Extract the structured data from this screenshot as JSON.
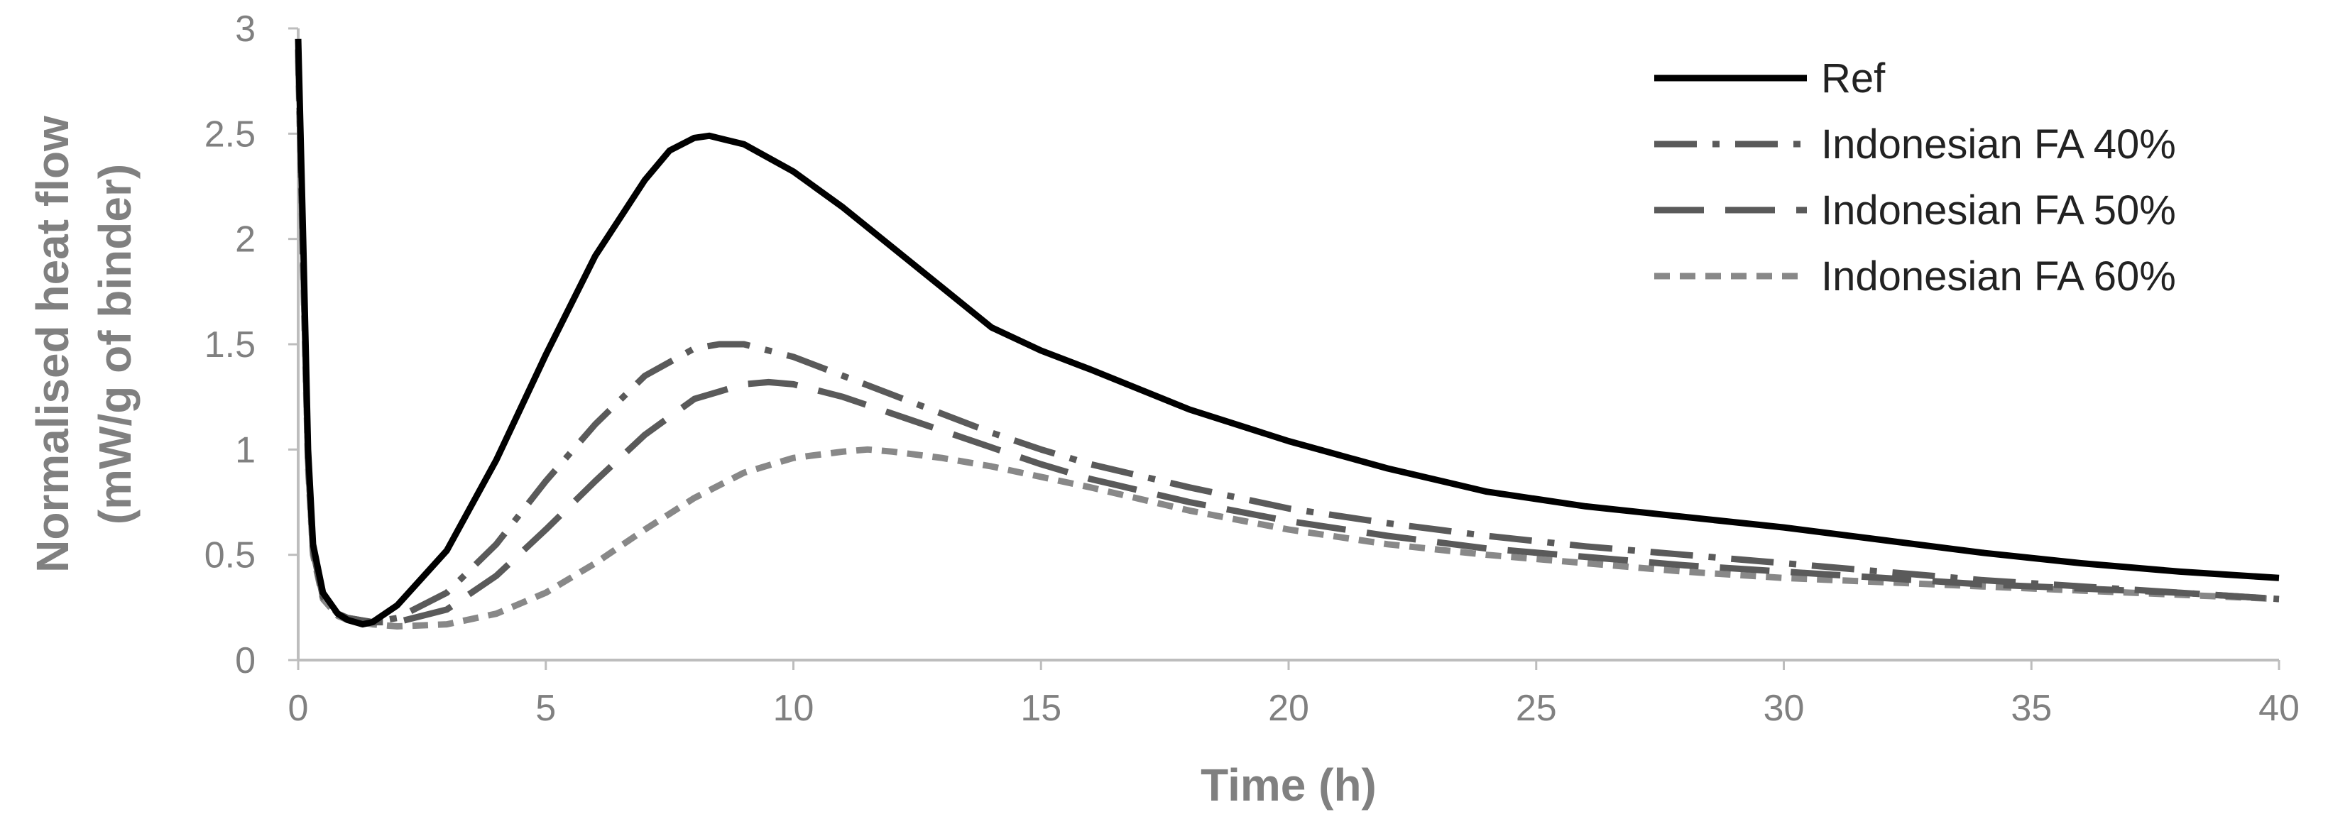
{
  "chart_data": {
    "type": "line",
    "title": "",
    "xlabel": "Time (h)",
    "ylabel_line1": "Normalised heat flow",
    "ylabel_line2": "(mW/g of binder)",
    "xlim": [
      0,
      40
    ],
    "ylim": [
      0,
      3
    ],
    "x_ticks": [
      0,
      5,
      10,
      15,
      20,
      25,
      30,
      35,
      40
    ],
    "y_ticks": [
      0,
      0.5,
      1,
      1.5,
      2,
      2.5,
      3
    ],
    "x_tick_labels": [
      "0",
      "5",
      "10",
      "15",
      "20",
      "25",
      "30",
      "35",
      "40"
    ],
    "y_tick_labels": [
      "0",
      "0.5",
      "1",
      "1.5",
      "2",
      "2.5",
      "3"
    ],
    "grid": false,
    "legend_position": "top-right",
    "series": [
      {
        "name": "Ref",
        "color": "#000000",
        "style": "solid",
        "x": [
          0,
          0.1,
          0.2,
          0.3,
          0.5,
          0.8,
          1.0,
          1.3,
          1.5,
          2,
          3,
          4,
          5,
          6,
          7,
          7.5,
          8,
          8.3,
          9,
          10,
          11,
          12,
          13,
          14,
          15,
          16,
          18,
          20,
          22,
          24,
          26,
          28,
          30,
          32,
          34,
          36,
          38,
          40
        ],
        "y": [
          2.95,
          2.0,
          1.0,
          0.55,
          0.32,
          0.22,
          0.19,
          0.17,
          0.18,
          0.26,
          0.52,
          0.95,
          1.45,
          1.92,
          2.28,
          2.42,
          2.48,
          2.49,
          2.45,
          2.32,
          2.15,
          1.96,
          1.77,
          1.58,
          1.47,
          1.38,
          1.19,
          1.04,
          0.91,
          0.8,
          0.73,
          0.68,
          0.63,
          0.57,
          0.51,
          0.46,
          0.42,
          0.39
        ]
      },
      {
        "name": "Indonesian FA 40%",
        "color": "#5a5a5a",
        "style": "dash-dot",
        "x": [
          0,
          0.1,
          0.2,
          0.3,
          0.5,
          0.8,
          1.0,
          1.5,
          2,
          3,
          4,
          5,
          6,
          7,
          8,
          8.5,
          9,
          10,
          11,
          12,
          13,
          14,
          15,
          16,
          18,
          20,
          22,
          24,
          26,
          28,
          30,
          32,
          34,
          36,
          38,
          40
        ],
        "y": [
          2.9,
          1.9,
          0.95,
          0.52,
          0.3,
          0.22,
          0.2,
          0.18,
          0.2,
          0.32,
          0.55,
          0.85,
          1.12,
          1.35,
          1.48,
          1.5,
          1.5,
          1.44,
          1.35,
          1.26,
          1.17,
          1.08,
          1.0,
          0.93,
          0.82,
          0.72,
          0.65,
          0.59,
          0.54,
          0.5,
          0.46,
          0.42,
          0.38,
          0.35,
          0.32,
          0.29
        ]
      },
      {
        "name": "Indonesian FA 50%",
        "color": "#5a5a5a",
        "style": "long-dash",
        "x": [
          0,
          0.1,
          0.2,
          0.3,
          0.5,
          0.8,
          1.0,
          1.5,
          2,
          3,
          4,
          5,
          6,
          7,
          8,
          9,
          9.5,
          10,
          11,
          12,
          13,
          14,
          15,
          16,
          18,
          20,
          22,
          24,
          26,
          28,
          30,
          32,
          34,
          36,
          38,
          40
        ],
        "y": [
          2.9,
          1.9,
          0.95,
          0.52,
          0.3,
          0.22,
          0.2,
          0.18,
          0.18,
          0.24,
          0.4,
          0.62,
          0.85,
          1.07,
          1.24,
          1.31,
          1.32,
          1.31,
          1.25,
          1.17,
          1.09,
          1.01,
          0.93,
          0.86,
          0.75,
          0.66,
          0.59,
          0.53,
          0.49,
          0.45,
          0.42,
          0.39,
          0.36,
          0.34,
          0.32,
          0.29
        ]
      },
      {
        "name": "Indonesian FA 60%",
        "color": "#888888",
        "style": "short-dash",
        "x": [
          0,
          0.1,
          0.2,
          0.3,
          0.5,
          0.8,
          1.0,
          1.5,
          2,
          3,
          4,
          5,
          6,
          7,
          8,
          9,
          10,
          11,
          11.5,
          12,
          13,
          14,
          15,
          16,
          18,
          20,
          22,
          24,
          26,
          28,
          30,
          32,
          34,
          36,
          38,
          40
        ],
        "y": [
          2.85,
          1.85,
          0.92,
          0.5,
          0.29,
          0.21,
          0.19,
          0.17,
          0.16,
          0.17,
          0.22,
          0.32,
          0.46,
          0.62,
          0.77,
          0.89,
          0.96,
          0.99,
          1.0,
          0.99,
          0.96,
          0.92,
          0.87,
          0.82,
          0.71,
          0.62,
          0.55,
          0.5,
          0.46,
          0.42,
          0.39,
          0.37,
          0.35,
          0.33,
          0.31,
          0.29
        ]
      }
    ]
  }
}
